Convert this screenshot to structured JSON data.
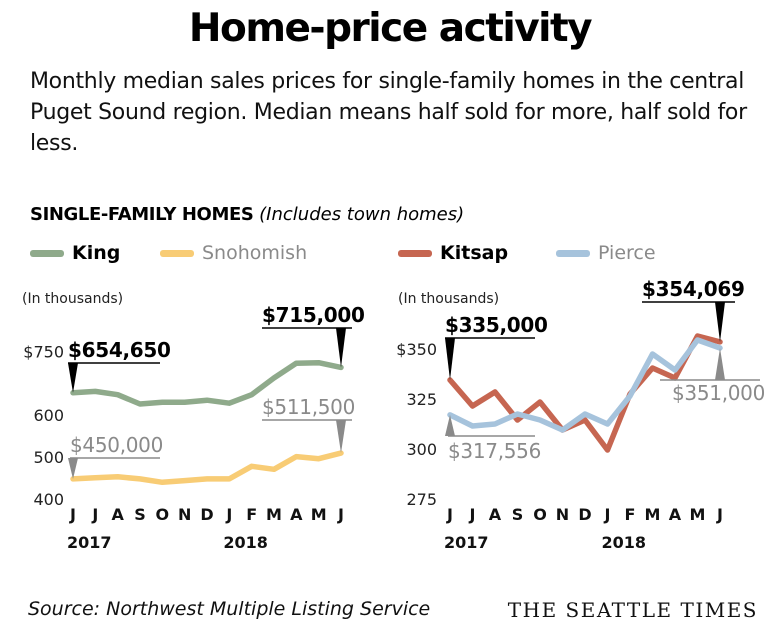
{
  "title": "Home-price activity",
  "subtitle": "Monthly median sales prices for single-family homes in the central Puget Sound region. Median means half sold for more, half sold for less.",
  "section": {
    "heading": "SINGLE-FAMILY HOMES",
    "note": "(Includes town homes)"
  },
  "source": "Source: Northwest Multiple Listing Service",
  "brand": "THE SEATTLE TIMES",
  "colors": {
    "King": "#8faa8b",
    "Snohomish": "#f8cc75",
    "Kitsap": "#c66651",
    "Pierce": "#a6c3dc"
  },
  "chart_data": [
    {
      "type": "line",
      "unit_label": "(In thousands)",
      "ylim": [
        400,
        780
      ],
      "yticks": [
        400,
        500,
        600,
        750
      ],
      "ytick_labels": [
        "400",
        "500",
        "600",
        "$750"
      ],
      "x": [
        "J",
        "J",
        "A",
        "S",
        "O",
        "N",
        "D",
        "J",
        "F",
        "M",
        "A",
        "M",
        "J"
      ],
      "x_years": [
        {
          "label": "2017",
          "index": 0
        },
        {
          "label": "2018",
          "index": 7
        }
      ],
      "series": [
        {
          "name": "King",
          "color": "#8faa8b",
          "values": [
            654.65,
            658,
            650,
            628,
            632,
            632,
            637,
            630,
            650,
            690,
            725,
            726,
            715
          ]
        },
        {
          "name": "Snohomish",
          "color": "#f8cc75",
          "values": [
            450,
            453,
            455,
            450,
            442,
            446,
            450,
            450,
            480,
            473,
            503,
            498,
            511.5
          ]
        }
      ],
      "annotations": [
        {
          "text": "$715,000",
          "series": 0,
          "index": 12,
          "style": "bold"
        },
        {
          "text": "$654,650",
          "series": 0,
          "index": 0,
          "style": "bold"
        },
        {
          "text": "$511,500",
          "series": 1,
          "index": 12,
          "style": "gray"
        },
        {
          "text": "$450,000",
          "series": 1,
          "index": 0,
          "style": "gray"
        }
      ]
    },
    {
      "type": "line",
      "unit_label": "(In thousands)",
      "ylim": [
        275,
        360
      ],
      "yticks": [
        275,
        300,
        325,
        350
      ],
      "ytick_labels": [
        "275",
        "300",
        "325",
        "$350"
      ],
      "x": [
        "J",
        "J",
        "A",
        "S",
        "O",
        "N",
        "D",
        "J",
        "F",
        "M",
        "A",
        "M",
        "J"
      ],
      "x_years": [
        {
          "label": "2017",
          "index": 0
        },
        {
          "label": "2018",
          "index": 7
        }
      ],
      "series": [
        {
          "name": "Kitsap",
          "color": "#c66651",
          "values": [
            335,
            322,
            329,
            315,
            324,
            310,
            315,
            300,
            328,
            341,
            336,
            357,
            354.069
          ]
        },
        {
          "name": "Pierce",
          "color": "#a6c3dc",
          "values": [
            317.556,
            312,
            313,
            318,
            315,
            310,
            318,
            313,
            327,
            348,
            340,
            355,
            351
          ]
        }
      ],
      "annotations": [
        {
          "text": "$354,069",
          "series": 0,
          "index": 12,
          "style": "bold"
        },
        {
          "text": "$335,000",
          "series": 0,
          "index": 0,
          "style": "bold"
        },
        {
          "text": "$351,000",
          "series": 1,
          "index": 12,
          "style": "gray"
        },
        {
          "text": "$317,556",
          "series": 1,
          "index": 0,
          "style": "gray"
        }
      ]
    }
  ]
}
